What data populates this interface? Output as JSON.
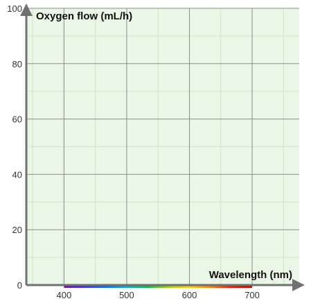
{
  "chart_data": {
    "type": "line",
    "xlabel": "Wavelength (nm)",
    "ylabel": "Oxygen flow (mL/h)",
    "xlim": [
      340,
      775
    ],
    "ylim": [
      0,
      100
    ],
    "x_ticks": [
      400,
      500,
      600,
      700
    ],
    "y_ticks": [
      0,
      20,
      40,
      60,
      80,
      100
    ],
    "x_minor_step": 50,
    "y_minor_step": 10,
    "grid": true,
    "spectrum_band": [
      400,
      700
    ],
    "series": [],
    "colors": {
      "background": "#eaf6e6",
      "minor_grid": "#cfe5c8",
      "major_grid": "#8a8a8a",
      "axis": "#707070",
      "spectrum": [
        "#6a0dad",
        "#3a2cff",
        "#0070ff",
        "#00b0d0",
        "#00c040",
        "#a8d000",
        "#ffd000",
        "#ff8000",
        "#ff1000",
        "#c00000"
      ]
    }
  }
}
